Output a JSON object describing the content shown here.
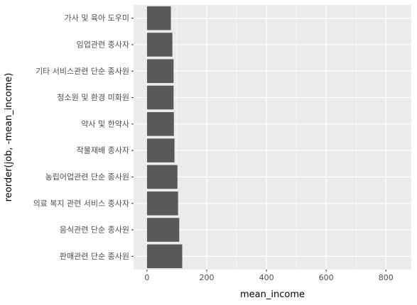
{
  "chart_data": {
    "type": "bar",
    "orientation": "horizontal",
    "categories": [
      "판매관련 단순 종사원",
      "음식관련 단순 종사원",
      "의료 복지 관련 서비스 종사자",
      "농립어업관련 단순 종사원",
      "작물재배 종사자",
      "약사 및 한약사",
      "청소원 및 환경 미화원",
      "기타 서비스관련 단순 종사원",
      "임업관련 종사자",
      "가사 및 육아 도우미"
    ],
    "values": [
      118,
      108,
      104,
      102,
      92,
      90,
      89,
      89,
      85,
      80
    ],
    "xlabel": "mean_income",
    "ylabel": "reorder(job, -mean_income)",
    "xlim": [
      -45,
      885
    ],
    "xticks": [
      0,
      200,
      400,
      600,
      800
    ],
    "grid": true,
    "colors": {
      "panel": "#ebebeb",
      "grid_major": "#ffffff",
      "bar": "#595959",
      "tick_text": "#4d4d4d",
      "axis_text": "#000000"
    }
  }
}
